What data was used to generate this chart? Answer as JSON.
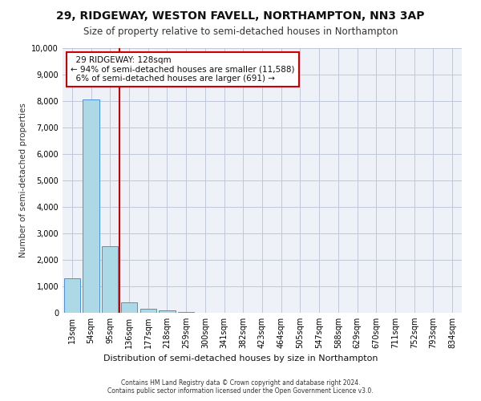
{
  "title1": "29, RIDGEWAY, WESTON FAVELL, NORTHAMPTON, NN3 3AP",
  "title2": "Size of property relative to semi-detached houses in Northampton",
  "xlabel": "Distribution of semi-detached houses by size in Northampton",
  "ylabel": "Number of semi-detached properties",
  "bin_labels": [
    "13sqm",
    "54sqm",
    "95sqm",
    "136sqm",
    "177sqm",
    "218sqm",
    "259sqm",
    "300sqm",
    "341sqm",
    "382sqm",
    "423sqm",
    "464sqm",
    "505sqm",
    "547sqm",
    "588sqm",
    "629sqm",
    "670sqm",
    "711sqm",
    "752sqm",
    "793sqm",
    "834sqm"
  ],
  "bar_values": [
    1300,
    8050,
    2520,
    400,
    155,
    100,
    30,
    10,
    5,
    2,
    1,
    0,
    0,
    0,
    0,
    0,
    0,
    0,
    0,
    0,
    0
  ],
  "bar_color": "#add8e6",
  "bar_edge_color": "#4a90d9",
  "property_label": "29 RIDGEWAY: 128sqm",
  "pct_smaller": 94,
  "num_smaller": 11588,
  "pct_larger": 6,
  "num_larger": 691,
  "vline_x": 2.5,
  "vline_color": "#cc0000",
  "annotation_box_color": "#cc0000",
  "footer1": "Contains HM Land Registry data © Crown copyright and database right 2024.",
  "footer2": "Contains public sector information licensed under the Open Government Licence v3.0.",
  "ylim": [
    0,
    10000
  ],
  "yticks": [
    0,
    1000,
    2000,
    3000,
    4000,
    5000,
    6000,
    7000,
    8000,
    9000,
    10000
  ],
  "grid_color": "#c0c8d8",
  "background_color": "#eef2f8"
}
